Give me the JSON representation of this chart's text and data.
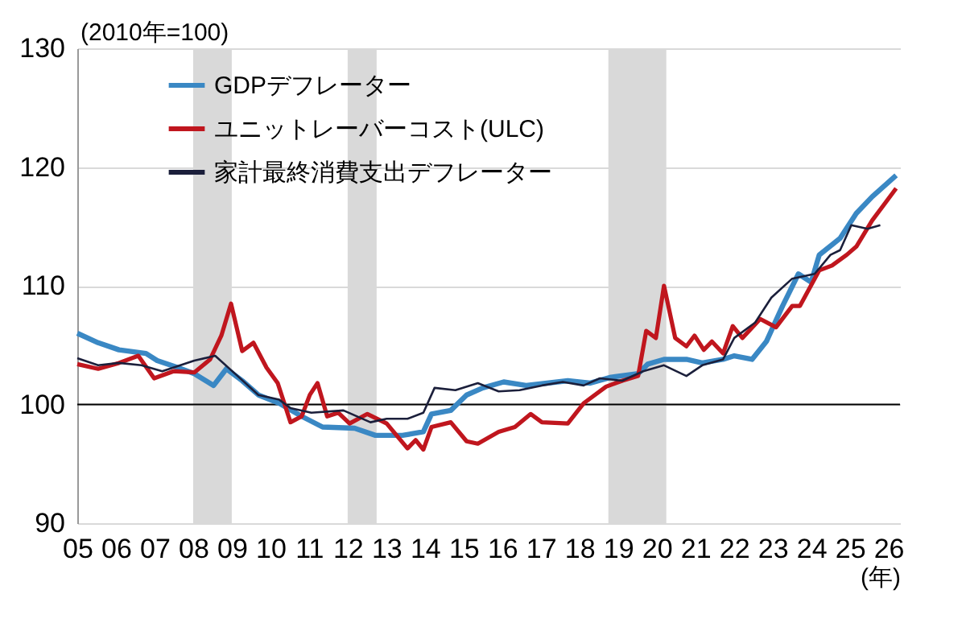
{
  "chart_data": {
    "type": "line",
    "xlabel": "(年)",
    "annotations": [
      "(2010年=100)"
    ],
    "xlim": [
      2005,
      2026.3
    ],
    "xticks": [
      {
        "value": 2005,
        "label": "05"
      },
      {
        "value": 2006,
        "label": "06"
      },
      {
        "value": 2007,
        "label": "07"
      },
      {
        "value": 2008,
        "label": "08"
      },
      {
        "value": 2009,
        "label": "09"
      },
      {
        "value": 2010,
        "label": "10"
      },
      {
        "value": 2011,
        "label": "11"
      },
      {
        "value": 2012,
        "label": "12"
      },
      {
        "value": 2013,
        "label": "13"
      },
      {
        "value": 2014,
        "label": "14"
      },
      {
        "value": 2015,
        "label": "15"
      },
      {
        "value": 2016,
        "label": "16"
      },
      {
        "value": 2017,
        "label": "17"
      },
      {
        "value": 2018,
        "label": "18"
      },
      {
        "value": 2019,
        "label": "19"
      },
      {
        "value": 2020,
        "label": "20"
      },
      {
        "value": 2021,
        "label": "21"
      },
      {
        "value": 2022,
        "label": "22"
      },
      {
        "value": 2023,
        "label": "23"
      },
      {
        "value": 2024,
        "label": "24"
      },
      {
        "value": 2025,
        "label": "25"
      },
      {
        "value": 2026,
        "label": "26"
      }
    ],
    "ylim": [
      90,
      130
    ],
    "yticks": [
      90,
      100,
      110,
      120,
      130
    ],
    "grid": "y",
    "legend": "top left",
    "ref_lines": [
      {
        "axis": "y",
        "value": 100,
        "color": "#000000"
      }
    ],
    "bands": [
      {
        "axis": "x",
        "from": 2008.0,
        "to": 2009.0,
        "color": "#d9d9d9"
      },
      {
        "axis": "x",
        "from": 2012.0,
        "to": 2012.75,
        "color": "#d9d9d9"
      },
      {
        "axis": "x",
        "from": 2018.75,
        "to": 2020.25,
        "color": "#d9d9d9"
      }
    ],
    "series": [
      {
        "name": "GDPデフレーター",
        "color": "#3a88c4",
        "x": [
          2005.0,
          2005.54,
          2006.08,
          2006.78,
          2007.07,
          2007.61,
          2008.03,
          2008.53,
          2008.86,
          2009.27,
          2009.69,
          2010.23,
          2010.81,
          2011.35,
          2012.18,
          2012.72,
          2013.42,
          2013.96,
          2014.17,
          2014.67,
          2015.08,
          2015.5,
          2016.04,
          2016.62,
          2017.16,
          2017.7,
          2018.28,
          2018.82,
          2019.52,
          2019.77,
          2020.19,
          2020.77,
          2021.18,
          2021.72,
          2022.01,
          2022.47,
          2022.84,
          2023.26,
          2023.67,
          2024.0,
          2024.21,
          2024.75,
          2025.17,
          2025.58,
          2026.2
        ],
        "values": [
          106.0,
          105.2,
          104.6,
          104.3,
          103.7,
          103.1,
          102.6,
          101.6,
          103.0,
          102.0,
          100.8,
          100.1,
          99.0,
          98.1,
          98.0,
          97.4,
          97.4,
          97.7,
          99.2,
          99.5,
          100.8,
          101.4,
          101.9,
          101.6,
          101.8,
          102.0,
          101.8,
          102.3,
          102.6,
          103.4,
          103.8,
          103.8,
          103.5,
          103.8,
          104.1,
          103.8,
          105.3,
          108.3,
          111.0,
          110.3,
          112.6,
          114.0,
          116.1,
          117.5,
          119.3
        ]
      },
      {
        "name": "ユニットレーバーコスト(ULC)",
        "color": "#c0161e",
        "x": [
          2005.0,
          2005.54,
          2006.08,
          2006.58,
          2006.99,
          2007.49,
          2008.03,
          2008.44,
          2008.73,
          2008.98,
          2009.27,
          2009.56,
          2009.9,
          2010.19,
          2010.52,
          2010.81,
          2011.02,
          2011.22,
          2011.47,
          2011.76,
          2012.05,
          2012.51,
          2013.01,
          2013.55,
          2013.76,
          2013.96,
          2014.17,
          2014.67,
          2015.08,
          2015.37,
          2015.91,
          2016.33,
          2016.74,
          2017.03,
          2017.7,
          2018.11,
          2018.69,
          2019.11,
          2019.52,
          2019.73,
          2019.98,
          2020.19,
          2020.48,
          2020.77,
          2020.98,
          2021.22,
          2021.43,
          2021.72,
          2021.97,
          2022.22,
          2022.68,
          2023.09,
          2023.51,
          2023.71,
          2024.21,
          2024.54,
          2024.92,
          2025.17,
          2025.58,
          2026.2
        ],
        "values": [
          103.4,
          103.0,
          103.5,
          104.1,
          102.2,
          102.8,
          102.7,
          103.8,
          105.8,
          108.5,
          104.5,
          105.2,
          103.1,
          101.8,
          98.5,
          99.0,
          100.8,
          101.8,
          99.0,
          99.3,
          98.4,
          99.2,
          98.4,
          96.3,
          97.0,
          96.2,
          98.1,
          98.5,
          96.9,
          96.7,
          97.7,
          98.1,
          99.2,
          98.5,
          98.4,
          100.1,
          101.5,
          102.0,
          102.4,
          106.2,
          105.6,
          110.0,
          105.6,
          104.9,
          105.8,
          104.6,
          105.3,
          104.3,
          106.6,
          105.6,
          107.2,
          106.5,
          108.3,
          108.3,
          111.3,
          111.7,
          112.6,
          113.3,
          115.5,
          118.2
        ]
      },
      {
        "name": "家計最終消費支出デフレーター",
        "color": "#1b1f3b",
        "x": [
          2005.0,
          2005.54,
          2006.08,
          2006.66,
          2007.2,
          2008.03,
          2008.57,
          2009.15,
          2009.69,
          2010.23,
          2010.52,
          2011.06,
          2011.89,
          2012.59,
          2013.01,
          2013.55,
          2013.96,
          2014.25,
          2014.79,
          2015.37,
          2015.91,
          2016.45,
          2017.03,
          2017.57,
          2018.11,
          2018.53,
          2019.11,
          2019.65,
          2020.19,
          2020.77,
          2021.18,
          2021.72,
          2022.01,
          2022.55,
          2022.97,
          2023.51,
          2024.09,
          2024.5,
          2024.75,
          2025.04,
          2025.46,
          2025.79
        ],
        "values": [
          103.9,
          103.3,
          103.5,
          103.3,
          102.8,
          103.7,
          104.1,
          102.4,
          100.8,
          100.4,
          99.7,
          99.3,
          99.5,
          98.5,
          98.8,
          98.8,
          99.3,
          101.4,
          101.2,
          101.8,
          101.1,
          101.2,
          101.6,
          101.9,
          101.6,
          102.2,
          102.0,
          102.8,
          103.3,
          102.4,
          103.3,
          103.8,
          105.6,
          106.9,
          109.0,
          110.6,
          111.0,
          112.6,
          113.0,
          115.1,
          114.8,
          115.1
        ]
      }
    ]
  }
}
